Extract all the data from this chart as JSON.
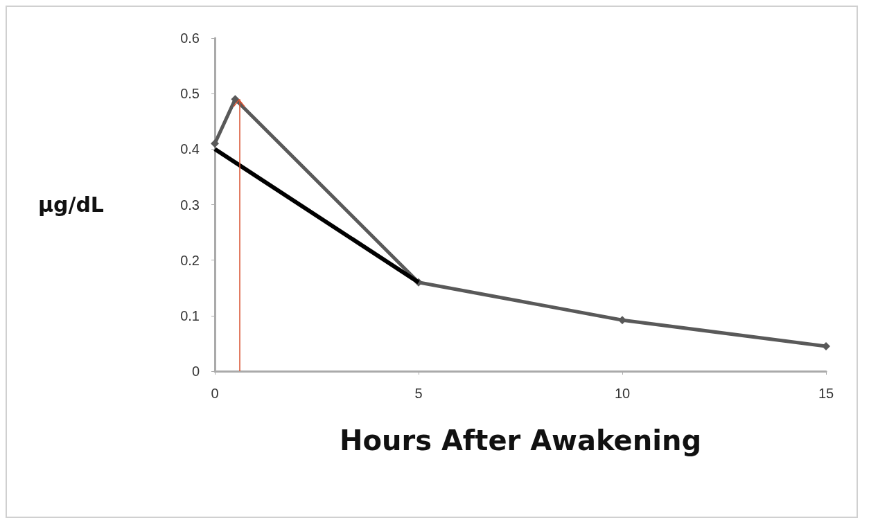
{
  "chart_data": {
    "type": "line",
    "xlabel": "Hours After Awakening",
    "ylabel": "µg/dL",
    "xlim": [
      0,
      15
    ],
    "xticks": [
      0,
      5,
      10,
      15
    ],
    "ylim": [
      0,
      0.6
    ],
    "yticks": [
      0,
      0.1,
      0.2,
      0.3,
      0.4,
      0.5,
      0.6
    ],
    "grid": false,
    "series": [
      {
        "color": "#595959",
        "marker": "diamond",
        "x": [
          0,
          0.5,
          5,
          10,
          15
        ],
        "values": [
          0.41,
          0.49,
          0.16,
          0.092,
          0.045
        ]
      },
      {
        "color": "#000000",
        "marker": "none",
        "x": [
          0,
          5
        ],
        "values": [
          0.4,
          0.16
        ]
      }
    ],
    "ref_lines": [
      {
        "axis": "x",
        "value": 0.6,
        "color": "#d9502f"
      }
    ]
  }
}
